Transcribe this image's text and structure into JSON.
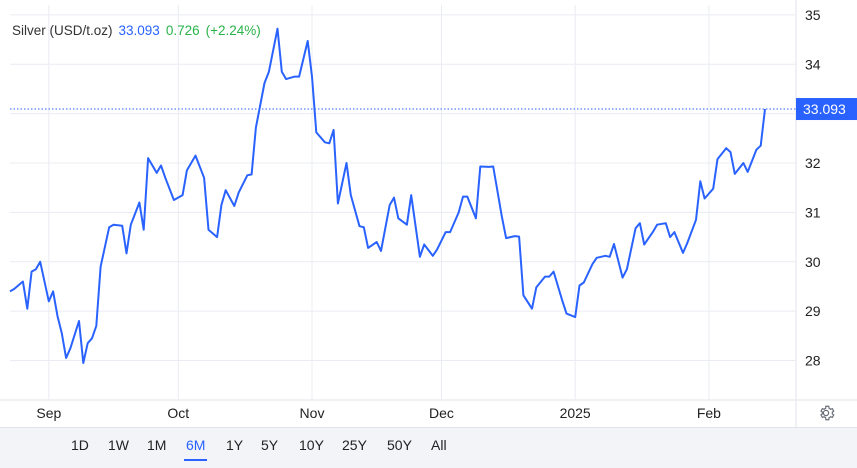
{
  "chart_data": {
    "type": "line",
    "title": "",
    "xlabel": "",
    "ylabel": "",
    "ylim": [
      27.2,
      35.2
    ],
    "y_ticks": [
      "35",
      "34",
      "33",
      "32",
      "31",
      "30",
      "29",
      "28"
    ],
    "x_ticks": [
      "Sep",
      "Oct",
      "Nov",
      "Dec",
      "2025",
      "Feb"
    ],
    "grid": true,
    "current_price_line": 33.093,
    "series": [
      {
        "name": "Silver (USD/t.oz)",
        "color": "#2962ff",
        "x": [
          "2024-08-23",
          "2024-08-24",
          "2024-08-26",
          "2024-08-27",
          "2024-08-28",
          "2024-08-29",
          "2024-08-30",
          "2024-09-01",
          "2024-09-02",
          "2024-09-03",
          "2024-09-04",
          "2024-09-05",
          "2024-09-06",
          "2024-09-08",
          "2024-09-09",
          "2024-09-10",
          "2024-09-11",
          "2024-09-12",
          "2024-09-13",
          "2024-09-15",
          "2024-09-16",
          "2024-09-18",
          "2024-09-19",
          "2024-09-20",
          "2024-09-22",
          "2024-09-23",
          "2024-09-24",
          "2024-09-26",
          "2024-09-27",
          "2024-09-28",
          "2024-09-30",
          "2024-10-02",
          "2024-10-03",
          "2024-10-04",
          "2024-10-05",
          "2024-10-07",
          "2024-10-08",
          "2024-10-10",
          "2024-10-11",
          "2024-10-12",
          "2024-10-14",
          "2024-10-15",
          "2024-10-17",
          "2024-10-18",
          "2024-10-19",
          "2024-10-21",
          "2024-10-22",
          "2024-10-24",
          "2024-10-25",
          "2024-10-26",
          "2024-10-28",
          "2024-10-29",
          "2024-10-31",
          "2024-11-01",
          "2024-11-02",
          "2024-11-04",
          "2024-11-05",
          "2024-11-06",
          "2024-11-07",
          "2024-11-09",
          "2024-11-10",
          "2024-11-12",
          "2024-11-13",
          "2024-11-14",
          "2024-11-16",
          "2024-11-17",
          "2024-11-19",
          "2024-11-20",
          "2024-11-21",
          "2024-11-23",
          "2024-11-24",
          "2024-11-26",
          "2024-11-27",
          "2024-11-29",
          "2024-11-30",
          "2024-12-02",
          "2024-12-03",
          "2024-12-05",
          "2024-12-06",
          "2024-12-07",
          "2024-12-09",
          "2024-12-10",
          "2024-12-12",
          "2024-12-13",
          "2024-12-15",
          "2024-12-16",
          "2024-12-18",
          "2024-12-19",
          "2024-12-20",
          "2024-12-22",
          "2024-12-23",
          "2024-12-25",
          "2024-12-26",
          "2024-12-27",
          "2024-12-29",
          "2024-12-30",
          "2025-01-01",
          "2025-01-02",
          "2025-01-03",
          "2025-01-05",
          "2025-01-06",
          "2025-01-08",
          "2025-01-09",
          "2025-01-10",
          "2025-01-12",
          "2025-01-13",
          "2025-01-15",
          "2025-01-16",
          "2025-01-17",
          "2025-01-19",
          "2025-01-20",
          "2025-01-22",
          "2025-01-23",
          "2025-01-24",
          "2025-01-26",
          "2025-01-27",
          "2025-01-29",
          "2025-01-30",
          "2025-01-31",
          "2025-02-02",
          "2025-02-03",
          "2025-02-05",
          "2025-02-06",
          "2025-02-07",
          "2025-02-09",
          "2025-02-10",
          "2025-02-12",
          "2025-02-13",
          "2025-02-14"
        ],
        "values": [
          29.4,
          29.45,
          29.6,
          29.05,
          29.8,
          29.85,
          30.0,
          29.2,
          29.4,
          28.9,
          28.55,
          28.05,
          28.25,
          28.8,
          27.95,
          28.35,
          28.45,
          28.7,
          29.9,
          30.7,
          30.75,
          30.73,
          30.17,
          30.75,
          31.2,
          30.65,
          32.1,
          31.8,
          31.95,
          31.7,
          31.25,
          31.35,
          31.85,
          32.0,
          32.15,
          31.7,
          30.65,
          30.5,
          31.15,
          31.45,
          31.13,
          31.4,
          31.75,
          31.77,
          32.72,
          33.62,
          33.85,
          34.72,
          33.85,
          33.7,
          33.75,
          33.75,
          34.47,
          33.75,
          32.62,
          32.42,
          32.4,
          32.67,
          31.18,
          32.0,
          31.35,
          30.72,
          30.7,
          30.28,
          30.4,
          30.22,
          31.15,
          31.3,
          30.88,
          30.75,
          31.35,
          30.1,
          30.35,
          30.12,
          30.25,
          30.6,
          30.6,
          31.0,
          31.32,
          31.32,
          30.88,
          31.93,
          31.92,
          31.93,
          30.92,
          30.48,
          30.52,
          30.51,
          29.32,
          29.05,
          29.48,
          29.7,
          29.7,
          29.8,
          29.22,
          28.95,
          28.88,
          29.52,
          29.58,
          29.95,
          30.08,
          30.12,
          30.1,
          30.36,
          29.68,
          29.85,
          30.68,
          30.78,
          30.35,
          30.6,
          30.75,
          30.78,
          30.5,
          30.6,
          30.18,
          30.38,
          30.85,
          31.63,
          31.28,
          31.48,
          32.08,
          32.3,
          32.22,
          31.78,
          32.0,
          31.82,
          32.27,
          32.35,
          33.093
        ]
      }
    ]
  },
  "legend": {
    "instrument": "Silver (USD/t.oz)",
    "price": "33.093",
    "change": "0.726",
    "change_pct": "(+2.24%)"
  },
  "price_tag": "33.093",
  "range_buttons": [
    "1D",
    "1W",
    "1M",
    "6M",
    "1Y",
    "5Y",
    "10Y",
    "25Y",
    "50Y",
    "All"
  ],
  "selected_range": "6M",
  "colors": {
    "line": "#2962ff",
    "positive": "#2ab34a",
    "grid": "#e0e3eb",
    "price_tag_bg": "#2962ff"
  },
  "icons": {
    "settings": "gear-icon"
  }
}
